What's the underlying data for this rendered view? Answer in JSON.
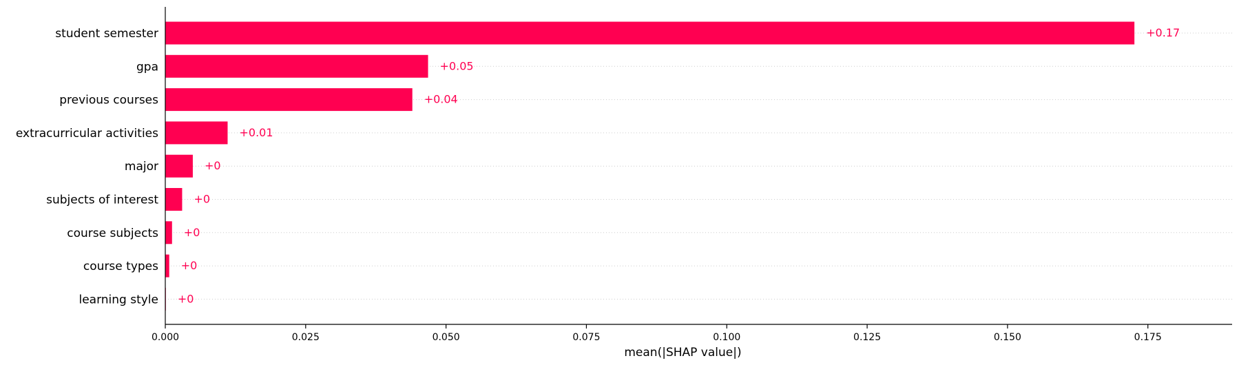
{
  "chart_data": {
    "type": "bar",
    "orientation": "horizontal",
    "title": "",
    "xlabel": "mean(|SHAP value|)",
    "ylabel": "",
    "xlim": [
      0,
      0.19
    ],
    "xticks": [
      0.0,
      0.025,
      0.05,
      0.075,
      0.1,
      0.125,
      0.15,
      0.175
    ],
    "xtick_labels": [
      "0.000",
      "0.025",
      "0.050",
      "0.075",
      "0.100",
      "0.125",
      "0.150",
      "0.175"
    ],
    "categories": [
      "student semester",
      "gpa",
      "previous courses",
      "extracurricular activities",
      "major",
      "subjects of interest",
      "course subjects",
      "course types",
      "learning style"
    ],
    "values": [
      0.1726,
      0.0468,
      0.044,
      0.0111,
      0.0049,
      0.003,
      0.0012,
      0.0007,
      0.0001
    ],
    "value_labels": [
      "+0.17",
      "+0.05",
      "+0.04",
      "+0.01",
      "+0",
      "+0",
      "+0",
      "+0",
      "+0"
    ],
    "bar_color": "#ff0051",
    "grid": "dotted horizontal guides per category",
    "legend": "none"
  }
}
